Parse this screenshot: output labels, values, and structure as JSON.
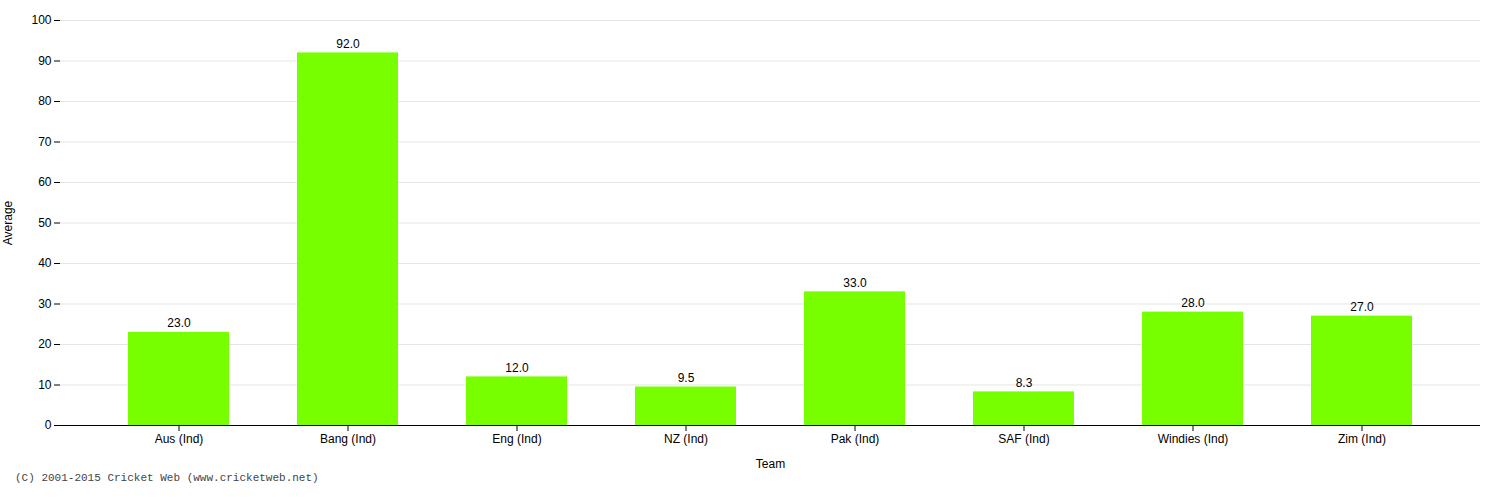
{
  "chart_data": {
    "type": "bar",
    "categories": [
      "Aus (Ind)",
      "Bang (Ind)",
      "Eng (Ind)",
      "NZ (Ind)",
      "Pak (Ind)",
      "SAF (Ind)",
      "Windies (Ind)",
      "Zim (Ind)"
    ],
    "values": [
      23.0,
      92.0,
      12.0,
      9.5,
      33.0,
      8.3,
      28.0,
      27.0
    ],
    "value_labels": [
      "23.0",
      "92.0",
      "12.0",
      "9.5",
      "33.0",
      "8.3",
      "28.0",
      "27.0"
    ],
    "data_labels": true,
    "color": "#77ff00",
    "xlabel": "Team",
    "ylabel": "Average",
    "ylim": [
      0,
      100
    ],
    "yticks": [
      0,
      10,
      20,
      30,
      40,
      50,
      60,
      70,
      80,
      90,
      100
    ],
    "grid": true,
    "footer": "(C) 2001-2015 Cricket Web (www.cricketweb.net)"
  }
}
